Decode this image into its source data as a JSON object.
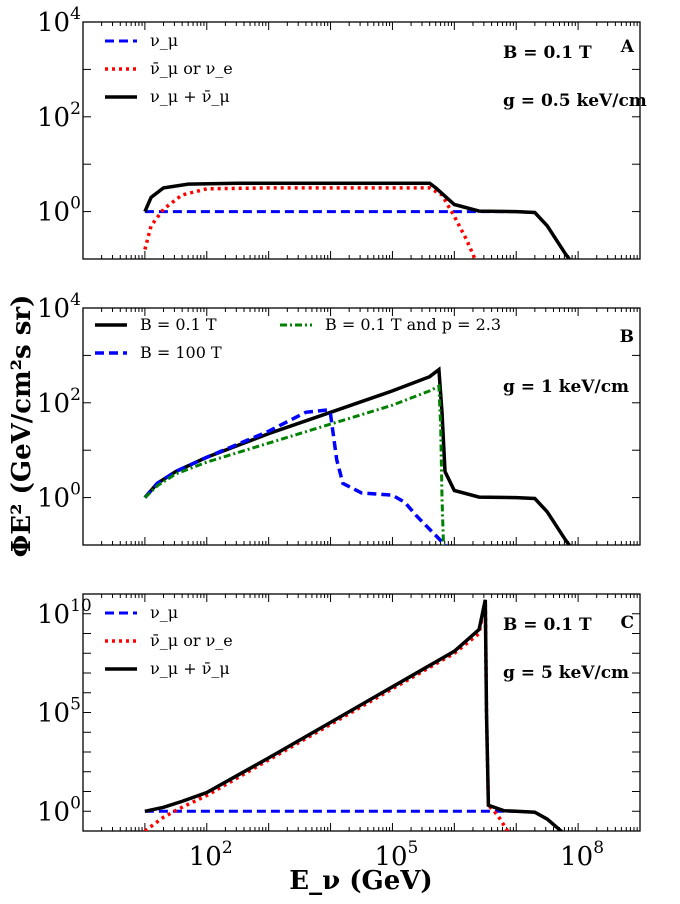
{
  "chart_data": [
    {
      "type": "line",
      "panel_label": "A",
      "x_scale": "log",
      "y_scale": "log",
      "xlim_log10": [
        0,
        9
      ],
      "ylim_log10": [
        -1,
        4
      ],
      "y_ticks": [
        {
          "base": "10",
          "exp": "4"
        },
        {
          "base": "10",
          "exp": "2"
        },
        {
          "base": "10",
          "exp": "0"
        }
      ],
      "annotations": [
        "B = 0.1 T",
        "g = 0.5 keV/cm"
      ],
      "series": [
        {
          "name": "ν_μ",
          "label_html": "ν<tspan baseline-shift='sub' font-size='11'>μ</tspan>",
          "color": "#0000ff",
          "dash": "9,5",
          "width": 3,
          "points": [
            [
              1.0,
              0
            ],
            [
              6.0,
              0
            ],
            [
              6.2,
              0
            ],
            [
              7.0,
              0
            ],
            [
              7.3,
              -0.02
            ],
            [
              7.5,
              -0.3
            ],
            [
              7.8,
              -0.9
            ],
            [
              8.2,
              -1.6
            ]
          ]
        },
        {
          "name": "ν̄_μ or ν_e",
          "color": "#ff0000",
          "dash": "3,4",
          "width": 3.5,
          "points": [
            [
              1.0,
              -0.8
            ],
            [
              1.1,
              -0.3
            ],
            [
              1.3,
              0.05
            ],
            [
              1.6,
              0.35
            ],
            [
              2.0,
              0.48
            ],
            [
              3.0,
              0.5
            ],
            [
              5.6,
              0.5
            ],
            [
              5.8,
              0.35
            ],
            [
              6.0,
              -0.1
            ],
            [
              6.2,
              -0.6
            ],
            [
              6.4,
              -1.2
            ]
          ]
        },
        {
          "name": "ν_μ + ν̄_μ",
          "color": "#000000",
          "dash": "",
          "width": 3.5,
          "points": [
            [
              1.0,
              0.0
            ],
            [
              1.1,
              0.3
            ],
            [
              1.3,
              0.5
            ],
            [
              1.7,
              0.58
            ],
            [
              2.5,
              0.6
            ],
            [
              5.6,
              0.6
            ],
            [
              5.7,
              0.5
            ],
            [
              6.0,
              0.15
            ],
            [
              6.4,
              0.01
            ],
            [
              7.0,
              0.0
            ],
            [
              7.3,
              -0.02
            ],
            [
              7.5,
              -0.3
            ],
            [
              7.8,
              -0.9
            ],
            [
              8.2,
              -1.6
            ]
          ]
        }
      ],
      "legend": [
        "ν_μ",
        "ν̄_μ or ν_e",
        "ν_μ + ν̄_μ"
      ]
    },
    {
      "type": "line",
      "panel_label": "B",
      "x_scale": "log",
      "y_scale": "log",
      "xlim_log10": [
        0,
        9
      ],
      "ylim_log10": [
        -1,
        4
      ],
      "y_ticks": [
        {
          "base": "10",
          "exp": "4"
        },
        {
          "base": "10",
          "exp": "2"
        },
        {
          "base": "10",
          "exp": "0"
        }
      ],
      "annotations": [
        "g = 1 keV/cm"
      ],
      "series": [
        {
          "name": "B = 0.1 T",
          "color": "#000000",
          "dash": "",
          "width": 3.5,
          "points": [
            [
              1.0,
              0
            ],
            [
              1.2,
              0.3
            ],
            [
              1.5,
              0.55
            ],
            [
              2.0,
              0.85
            ],
            [
              3.0,
              1.35
            ],
            [
              4.0,
              1.8
            ],
            [
              5.0,
              2.25
            ],
            [
              5.6,
              2.55
            ],
            [
              5.75,
              2.7
            ],
            [
              5.8,
              1.8
            ],
            [
              5.85,
              0.55
            ],
            [
              6.0,
              0.15
            ],
            [
              6.4,
              0.01
            ],
            [
              7.0,
              0.0
            ],
            [
              7.3,
              -0.02
            ],
            [
              7.5,
              -0.3
            ],
            [
              7.8,
              -0.9
            ],
            [
              8.2,
              -1.6
            ]
          ]
        },
        {
          "name": "B = 100 T",
          "color": "#0000ff",
          "dash": "9,5",
          "width": 3.5,
          "points": [
            [
              1.0,
              0
            ],
            [
              1.2,
              0.3
            ],
            [
              1.5,
              0.55
            ],
            [
              2.0,
              0.85
            ],
            [
              3.0,
              1.4
            ],
            [
              3.6,
              1.8
            ],
            [
              3.95,
              1.85
            ],
            [
              4.0,
              1.75
            ],
            [
              4.1,
              0.8
            ],
            [
              4.2,
              0.3
            ],
            [
              4.5,
              0.1
            ],
            [
              5.0,
              0.05
            ],
            [
              5.2,
              -0.1
            ],
            [
              5.4,
              -0.4
            ],
            [
              5.7,
              -0.8
            ],
            [
              6.0,
              -1.2
            ]
          ]
        },
        {
          "name": "B = 0.1 T and p = 2.3",
          "color": "#008000",
          "dash": "7,3,2,3",
          "width": 3,
          "points": [
            [
              1.0,
              0
            ],
            [
              1.2,
              0.25
            ],
            [
              1.5,
              0.5
            ],
            [
              2.0,
              0.75
            ],
            [
              3.0,
              1.15
            ],
            [
              4.0,
              1.55
            ],
            [
              5.0,
              1.95
            ],
            [
              5.6,
              2.25
            ],
            [
              5.75,
              2.35
            ],
            [
              5.78,
              1.5
            ],
            [
              5.8,
              0.0
            ],
            [
              5.83,
              -1.2
            ]
          ]
        }
      ],
      "legend": [
        "B = 0.1 T",
        "B = 100 T",
        "B = 0.1 T and p = 2.3"
      ]
    },
    {
      "type": "line",
      "panel_label": "C",
      "x_scale": "log",
      "y_scale": "log",
      "xlim_log10": [
        0,
        9
      ],
      "ylim_log10": [
        -1,
        11
      ],
      "y_ticks": [
        {
          "base": "10",
          "exp": "10"
        },
        {
          "base": "10",
          "exp": "5"
        },
        {
          "base": "10",
          "exp": "0"
        }
      ],
      "annotations": [
        "B = 0.1 T",
        "g = 5 keV/cm"
      ],
      "series": [
        {
          "name": "ν_μ",
          "color": "#0000ff",
          "dash": "9,5",
          "width": 3,
          "points": [
            [
              1.0,
              0
            ],
            [
              6.5,
              0
            ],
            [
              6.8,
              0
            ],
            [
              7.0,
              0
            ],
            [
              7.3,
              -0.05
            ],
            [
              7.5,
              -0.4
            ],
            [
              7.8,
              -1.2
            ]
          ]
        },
        {
          "name": "ν̄_μ or ν_e",
          "color": "#ff0000",
          "dash": "3,4",
          "width": 3.5,
          "points": [
            [
              1.0,
              -1.0
            ],
            [
              1.3,
              -0.3
            ],
            [
              1.6,
              0.2
            ],
            [
              2.0,
              0.8
            ],
            [
              3.0,
              2.6
            ],
            [
              4.0,
              4.4
            ],
            [
              5.0,
              6.2
            ],
            [
              6.0,
              8.0
            ],
            [
              6.4,
              9.0
            ],
            [
              6.5,
              10.7
            ],
            [
              6.52,
              5.0
            ],
            [
              6.55,
              0.3
            ],
            [
              6.7,
              -0.2
            ],
            [
              6.9,
              -1.2
            ]
          ]
        },
        {
          "name": "ν_μ + ν̄_μ",
          "color": "#000000",
          "dash": "",
          "width": 3.5,
          "points": [
            [
              1.0,
              0.0
            ],
            [
              1.3,
              0.2
            ],
            [
              1.6,
              0.5
            ],
            [
              2.0,
              0.95
            ],
            [
              3.0,
              2.7
            ],
            [
              4.0,
              4.5
            ],
            [
              5.0,
              6.3
            ],
            [
              6.0,
              8.1
            ],
            [
              6.4,
              9.2
            ],
            [
              6.5,
              10.7
            ],
            [
              6.52,
              5.0
            ],
            [
              6.55,
              0.3
            ],
            [
              6.8,
              0.03
            ],
            [
              7.0,
              0.0
            ],
            [
              7.3,
              -0.05
            ],
            [
              7.5,
              -0.4
            ],
            [
              7.8,
              -1.2
            ]
          ]
        }
      ],
      "legend": [
        "ν_μ",
        "ν̄_μ or ν_e",
        "ν_μ + ν̄_μ"
      ]
    }
  ],
  "x_axis": {
    "label": "E_ν (GeV)",
    "tick_labels": [
      {
        "base": "10",
        "exp": "2",
        "log10": 2
      },
      {
        "base": "10",
        "exp": "5",
        "log10": 5
      },
      {
        "base": "10",
        "exp": "8",
        "log10": 8
      }
    ]
  },
  "y_axis": {
    "label": "ΦE² (GeV/cm²s sr)"
  }
}
